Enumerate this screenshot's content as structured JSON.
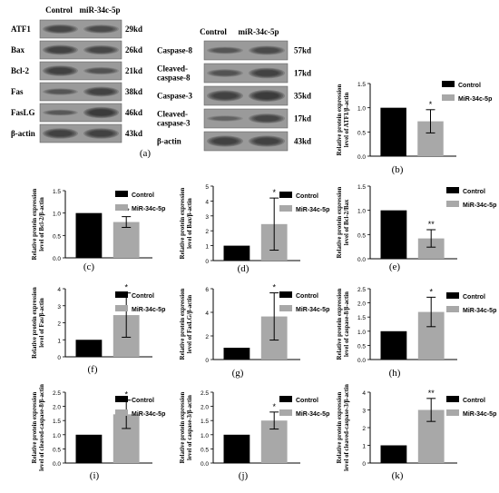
{
  "colors": {
    "control": "#000000",
    "treated": "#a8a8a8",
    "blot_band": "#1a1a1a",
    "blot_bg": "#9a9a9a"
  },
  "blot_left": {
    "headers": [
      "Control",
      "miR-34c-5p"
    ],
    "rows": [
      {
        "label": "ATF1",
        "size": "29kd",
        "c": 0.75,
        "t": 0.7
      },
      {
        "label": "Bax",
        "size": "26kd",
        "c": 0.8,
        "t": 0.75
      },
      {
        "label": "Bcl-2",
        "size": "21kd",
        "c": 0.85,
        "t": 0.6
      },
      {
        "label": "Fas",
        "size": "38kd",
        "c": 0.55,
        "t": 0.8
      },
      {
        "label": "FasLG",
        "size": "46kd",
        "c": 0.5,
        "t": 0.9
      },
      {
        "label": "β-actin",
        "size": "43kd",
        "c": 0.85,
        "t": 0.85
      }
    ],
    "caption": "(a)"
  },
  "blot_right": {
    "headers": [
      "Control",
      "miR-34c-5p"
    ],
    "rows": [
      {
        "label": "Caspase-8",
        "size": "57kd",
        "c": 0.55,
        "t": 0.7
      },
      {
        "label": "Cleaved-\ncaspase-8",
        "size": "17kd",
        "c": 0.6,
        "t": 0.8
      },
      {
        "label": "Caspase-3",
        "size": "35kd",
        "c": 0.85,
        "t": 0.9
      },
      {
        "label": "Cleaved-\ncaspase-3",
        "size": "17kd",
        "c": 0.45,
        "t": 0.75
      },
      {
        "label": "β-actin",
        "size": "43kd",
        "c": 0.85,
        "t": 0.85
      }
    ]
  },
  "chart_data": [
    {
      "id": "b",
      "type": "bar",
      "caption": "(b)",
      "ylabel": "Relative protein expression level of ATF1/β-actin",
      "ylim": [
        0,
        1.5
      ],
      "ticks": [
        "0.0",
        "0.5",
        "1.0",
        "1.5"
      ],
      "tick_values": [
        0,
        0.5,
        1.0,
        1.5
      ],
      "series": [
        {
          "name": "Control",
          "values": [
            1.0
          ],
          "error": [
            0
          ]
        },
        {
          "name": "MiR-34c-5p",
          "values": [
            0.72
          ],
          "error": [
            0.24
          ]
        }
      ],
      "significance": "*"
    },
    {
      "id": "c",
      "type": "bar",
      "caption": "(c)",
      "ylabel": "Relative protein expression level of Bcl-2/β-actin",
      "ylim": [
        0,
        1.5
      ],
      "ticks": [
        "0.0",
        "0.5",
        "1.0",
        "1.5"
      ],
      "tick_values": [
        0,
        0.5,
        1.0,
        1.5
      ],
      "series": [
        {
          "name": "Control",
          "values": [
            1.0
          ],
          "error": [
            0
          ]
        },
        {
          "name": "MiR-34c-5p",
          "values": [
            0.8
          ],
          "error": [
            0.12
          ]
        }
      ],
      "significance": "**"
    },
    {
      "id": "d",
      "type": "bar",
      "caption": "(d)",
      "ylabel": "Relative protein expression level of Bax/β-actin",
      "ylim": [
        0,
        5
      ],
      "ticks": [
        "0",
        "1",
        "2",
        "3",
        "4",
        "5"
      ],
      "tick_values": [
        0,
        1,
        2,
        3,
        4,
        5
      ],
      "series": [
        {
          "name": "Control",
          "values": [
            1.0
          ],
          "error": [
            0
          ]
        },
        {
          "name": "MiR-34c-5p",
          "values": [
            2.45
          ],
          "error": [
            1.75
          ]
        }
      ],
      "significance": "*"
    },
    {
      "id": "e",
      "type": "bar",
      "caption": "(e)",
      "ylabel": "Relative protein expression level of Bcl-2/Bax",
      "ylim": [
        0,
        1.5
      ],
      "ticks": [
        "0.0",
        "0.5",
        "1.0",
        "1.5"
      ],
      "tick_values": [
        0,
        0.5,
        1.0,
        1.5
      ],
      "series": [
        {
          "name": "Control",
          "values": [
            1.0
          ],
          "error": [
            0
          ]
        },
        {
          "name": "MiR-34c-5p",
          "values": [
            0.42
          ],
          "error": [
            0.18
          ]
        }
      ],
      "significance": "**"
    },
    {
      "id": "f",
      "type": "bar",
      "caption": "(f)",
      "ylabel": "Relative protein expression level of Fas/β-actin",
      "ylim": [
        0,
        4
      ],
      "ticks": [
        "0",
        "1",
        "2",
        "3",
        "4"
      ],
      "tick_values": [
        0,
        1,
        2,
        3,
        4
      ],
      "series": [
        {
          "name": "Control",
          "values": [
            1.0
          ],
          "error": [
            0
          ]
        },
        {
          "name": "MiR-34c-5p",
          "values": [
            2.45
          ],
          "error": [
            1.3
          ]
        }
      ],
      "significance": "*"
    },
    {
      "id": "g",
      "type": "bar",
      "caption": "(g)",
      "ylabel": "Relative protein expression level of FasLG/β-actin",
      "ylim": [
        0,
        6
      ],
      "ticks": [
        "0",
        "2",
        "4",
        "6"
      ],
      "tick_values": [
        0,
        2,
        4,
        6
      ],
      "series": [
        {
          "name": "Control",
          "values": [
            1.0
          ],
          "error": [
            0
          ]
        },
        {
          "name": "MiR-34c-5p",
          "values": [
            3.65
          ],
          "error": [
            2.0
          ]
        }
      ],
      "significance": "*"
    },
    {
      "id": "h",
      "type": "bar",
      "caption": "(h)",
      "ylabel": "Relative protein expression level of caspase-8/β-actin",
      "ylim": [
        0,
        2.5
      ],
      "ticks": [
        "0.0",
        "0.5",
        "1.0",
        "1.5",
        "2.0",
        "2.5"
      ],
      "tick_values": [
        0,
        0.5,
        1.0,
        1.5,
        2.0,
        2.5
      ],
      "series": [
        {
          "name": "Control",
          "values": [
            1.0
          ],
          "error": [
            0
          ]
        },
        {
          "name": "MiR-34c-5p",
          "values": [
            1.68
          ],
          "error": [
            0.52
          ]
        }
      ],
      "significance": "*"
    },
    {
      "id": "i",
      "type": "bar",
      "caption": "(i)",
      "ylabel": "Relative protein expression level of cleaved-caspase-8/β-actin",
      "ylim": [
        0,
        2.5
      ],
      "ticks": [
        "0.0",
        "0.5",
        "1.0",
        "1.5",
        "2.0",
        "2.5"
      ],
      "tick_values": [
        0,
        0.5,
        1.0,
        1.5,
        2.0,
        2.5
      ],
      "series": [
        {
          "name": "Control",
          "values": [
            1.0
          ],
          "error": [
            0
          ]
        },
        {
          "name": "MiR-34c-5p",
          "values": [
            1.72
          ],
          "error": [
            0.5
          ]
        }
      ],
      "significance": "*"
    },
    {
      "id": "j",
      "type": "bar",
      "caption": "(j)",
      "ylabel": "Relative protein expression level of caspase-3/β-actin",
      "ylim": [
        0,
        2.5
      ],
      "ticks": [
        "0.0",
        "0.5",
        "1.0",
        "1.5",
        "2.0",
        "2.5"
      ],
      "tick_values": [
        0,
        0.5,
        1.0,
        1.5,
        2.0,
        2.5
      ],
      "series": [
        {
          "name": "Control",
          "values": [
            1.0
          ],
          "error": [
            0
          ]
        },
        {
          "name": "MiR-34c-5p",
          "values": [
            1.5
          ],
          "error": [
            0.3
          ]
        }
      ],
      "significance": "*"
    },
    {
      "id": "k",
      "type": "bar",
      "caption": "(k)",
      "ylabel": "Relative protein expression level of cleaved-caspase-3/β-actin",
      "ylim": [
        0,
        4
      ],
      "ticks": [
        "0",
        "1",
        "2",
        "3",
        "4"
      ],
      "tick_values": [
        0,
        1,
        2,
        3,
        4
      ],
      "series": [
        {
          "name": "Control",
          "values": [
            1.0
          ],
          "error": [
            0
          ]
        },
        {
          "name": "MiR-34c-5p",
          "values": [
            3.0
          ],
          "error": [
            0.65
          ]
        }
      ],
      "significance": "**"
    }
  ]
}
